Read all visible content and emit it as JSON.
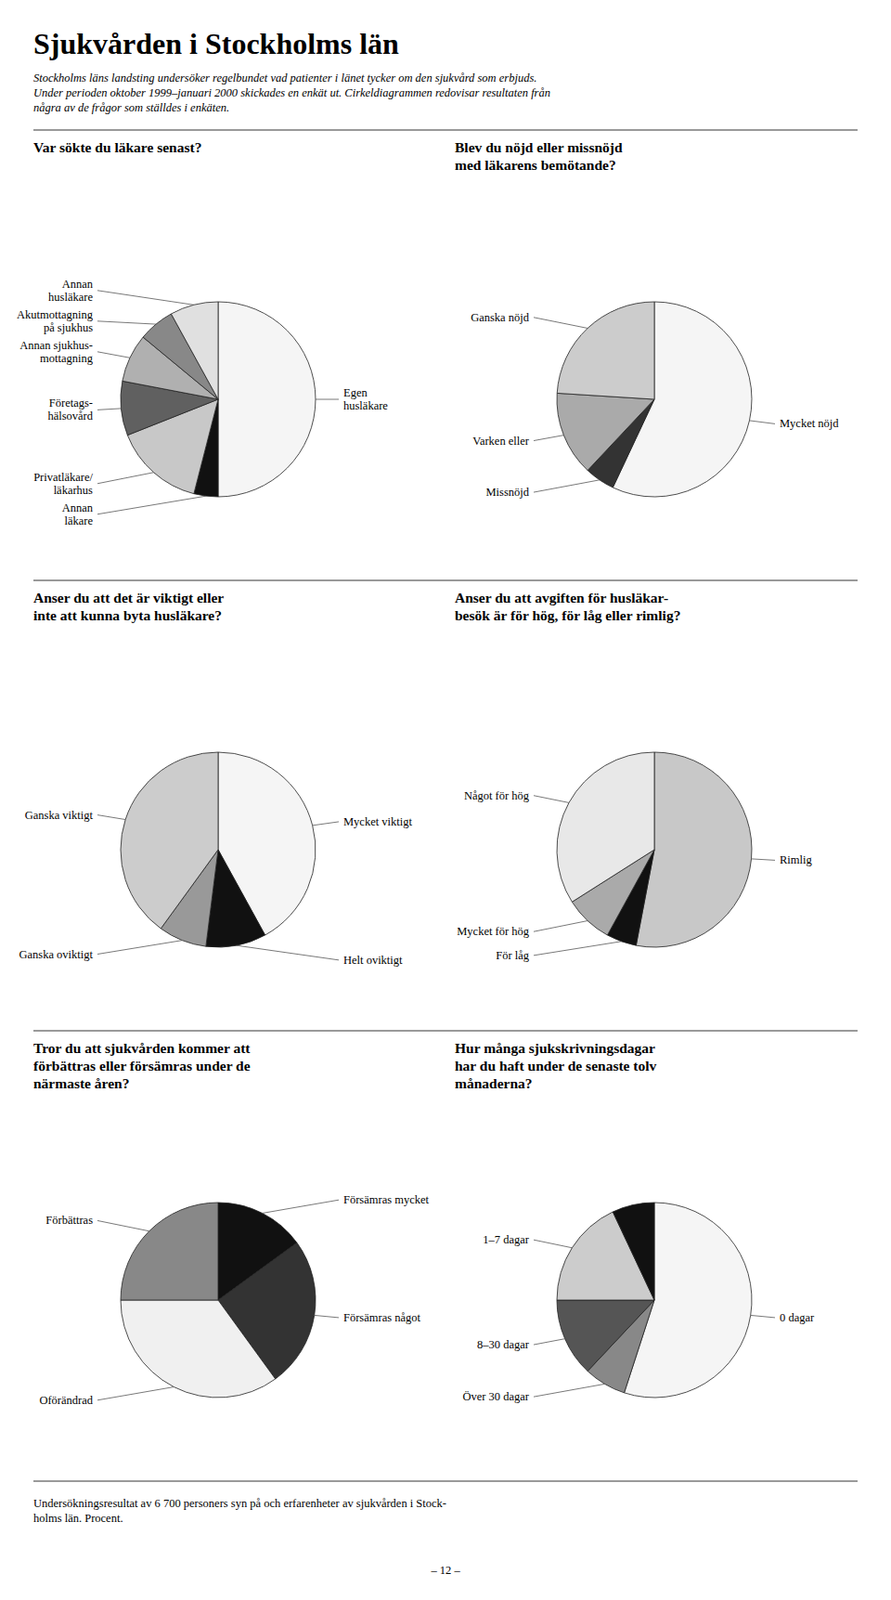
{
  "title": "Sjukvården i Stockholms län",
  "subtitle": [
    "Stockholms läns landsting undersöker regelbundet vad patienter i länet tycker om den sjukvård som erbjuds.",
    "Under perioden oktober 1999–januari 2000 skickades en enkät ut. Cirkeldiagrammen redovisar resultaten från",
    "några av de frågor som ställdes i enkäten."
  ],
  "annotations": [
    "Undersökningsresultat av 6 700 personers syn på och erfarenheter av sjukvården i Stock-\nholms län. Procent.",
    "– 12 –"
  ],
  "chart_data": [
    {
      "type": "pie",
      "title": "Var sökte du läkare senast?",
      "categories": [
        "Egen\nhusläkare",
        "Annan\nläkare",
        "Privatläkare/\nläkarhus",
        "Företags-\nhälsovård",
        "Annan sjukhus-\nmottagning",
        "Akutmottagning\npå sjukhus",
        "Annan\nhusläkare"
      ],
      "values": [
        50,
        4,
        15,
        9,
        8,
        6,
        8
      ],
      "colors": [
        "#f5f5f5",
        "#111111",
        "#c8c8c8",
        "#606060",
        "#b0b0b0",
        "#888888",
        "#e0e0e0"
      ]
    },
    {
      "type": "pie",
      "title": "Blev du nöjd eller missnöjd\nmed läkarens bemötande?",
      "categories": [
        "Mycket nöjd",
        "Missnöjd",
        "Varken eller",
        "Ganska nöjd"
      ],
      "values": [
        57,
        5,
        14,
        24
      ],
      "colors": [
        "#f5f5f5",
        "#333333",
        "#aaaaaa",
        "#cccccc"
      ]
    },
    {
      "type": "pie",
      "title": "Anser du att det är viktigt eller\ninte att kunna byta husläkare?",
      "categories": [
        "Mycket viktigt",
        "Helt oviktigt",
        "Ganska oviktigt",
        "Ganska viktigt"
      ],
      "values": [
        42,
        10,
        8,
        40
      ],
      "colors": [
        "#f5f5f5",
        "#111111",
        "#999999",
        "#cccccc"
      ]
    },
    {
      "type": "pie",
      "title": "Anser du att avgiften för husläkar-\nbesök är för hög, för låg eller rimlig?",
      "categories": [
        "Rimlig",
        "För låg",
        "Mycket för hög",
        "Något för hög"
      ],
      "values": [
        53,
        5,
        8,
        34
      ],
      "colors": [
        "#c8c8c8",
        "#111111",
        "#aaaaaa",
        "#e8e8e8"
      ]
    },
    {
      "type": "pie",
      "title": "Tror du att sjukvården kommer att\nförbättras eller försämras under de\nnärmaste åren?",
      "categories": [
        "Försämras mycket",
        "Försämras något",
        "Oförändrad",
        "Förbättras"
      ],
      "values": [
        15,
        25,
        35,
        25
      ],
      "colors": [
        "#111111",
        "#333333",
        "#f0f0f0",
        "#888888"
      ]
    },
    {
      "type": "pie",
      "title": "Hur många sjukskrivningsdagar\nhar du haft under de senaste tolv\nmånaderna?",
      "categories": [
        "0 dagar",
        "Över 30 dagar",
        "8–30 dagar",
        "1–7 dagar",
        null
      ],
      "values": [
        55,
        7,
        13,
        18,
        7
      ],
      "colors": [
        "#f5f5f5",
        "#888888",
        "#555555",
        "#cccccc",
        "#111111"
      ]
    }
  ]
}
